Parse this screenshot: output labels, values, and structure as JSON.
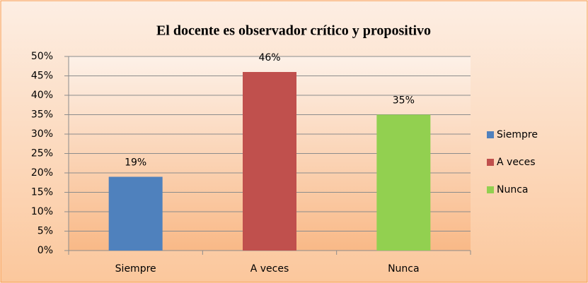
{
  "chart_data": {
    "type": "bar",
    "title": "El docente es observador crítico y propositivo",
    "categories": [
      "Siempre",
      "A veces",
      "Nunca"
    ],
    "values": [
      19,
      46,
      35
    ],
    "value_labels": [
      "19%",
      "46%",
      "35%"
    ],
    "colors": [
      "#4f81bd",
      "#c0504d",
      "#92d050"
    ],
    "ylim": [
      0,
      50
    ],
    "yticks": [
      {
        "value": 0,
        "label": "0%"
      },
      {
        "value": 5,
        "label": "5%"
      },
      {
        "value": 10,
        "label": "10%"
      },
      {
        "value": 15,
        "label": "15%"
      },
      {
        "value": 20,
        "label": "20%"
      },
      {
        "value": 25,
        "label": "25%"
      },
      {
        "value": 30,
        "label": "30%"
      },
      {
        "value": 35,
        "label": "35%"
      },
      {
        "value": 40,
        "label": "40%"
      },
      {
        "value": 45,
        "label": "45%"
      },
      {
        "value": 50,
        "label": "50%"
      }
    ],
    "grid": true,
    "legend": "right"
  }
}
